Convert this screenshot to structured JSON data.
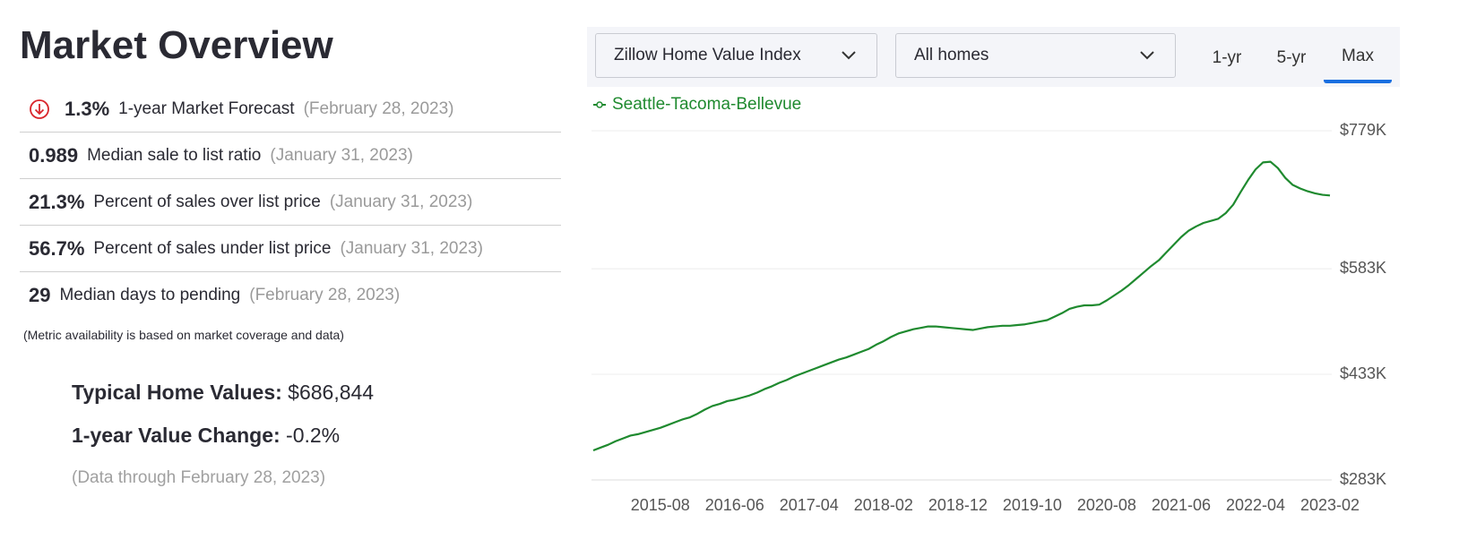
{
  "header": {
    "title": "Market Overview"
  },
  "metrics": [
    {
      "value": "1.3%",
      "label": "1-year Market Forecast",
      "date": "(February 28, 2023)"
    },
    {
      "value": "0.989",
      "label": "Median sale to list ratio",
      "date": "(January 31, 2023)"
    },
    {
      "value": "21.3%",
      "label": "Percent of sales over list price",
      "date": "(January 31, 2023)"
    },
    {
      "value": "56.7%",
      "label": "Percent of sales under list price",
      "date": "(January 31, 2023)"
    },
    {
      "value": "29",
      "label": "Median days to pending",
      "date": "(February 28, 2023)"
    }
  ],
  "note": "(Metric availability is based on market coverage and data)",
  "summary": {
    "typical_label": "Typical Home Values:",
    "typical_value": "$686,844",
    "change_label": "1-year Value Change:",
    "change_value": "-0.2%",
    "through": "(Data through February 28, 2023)"
  },
  "controls": {
    "index_dropdown": "Zillow Home Value Index",
    "homes_dropdown": "All homes",
    "tabs": [
      "1-yr",
      "5-yr",
      "Max"
    ],
    "active_tab": "Max"
  },
  "chart_data": {
    "type": "line",
    "x": [
      "2014-11",
      "2014-12",
      "2015-01",
      "2015-02",
      "2015-03",
      "2015-04",
      "2015-05",
      "2015-06",
      "2015-07",
      "2015-08",
      "2015-09",
      "2015-10",
      "2015-11",
      "2015-12",
      "2016-01",
      "2016-02",
      "2016-03",
      "2016-04",
      "2016-05",
      "2016-06",
      "2016-07",
      "2016-08",
      "2016-09",
      "2016-10",
      "2016-11",
      "2016-12",
      "2017-01",
      "2017-02",
      "2017-03",
      "2017-04",
      "2017-05",
      "2017-06",
      "2017-07",
      "2017-08",
      "2017-09",
      "2017-10",
      "2017-11",
      "2017-12",
      "2018-01",
      "2018-02",
      "2018-03",
      "2018-04",
      "2018-05",
      "2018-06",
      "2018-07",
      "2018-08",
      "2018-09",
      "2018-10",
      "2018-11",
      "2018-12",
      "2019-01",
      "2019-02",
      "2019-03",
      "2019-04",
      "2019-05",
      "2019-06",
      "2019-07",
      "2019-08",
      "2019-09",
      "2019-10",
      "2019-11",
      "2019-12",
      "2020-01",
      "2020-02",
      "2020-03",
      "2020-04",
      "2020-05",
      "2020-06",
      "2020-07",
      "2020-08",
      "2020-09",
      "2020-10",
      "2020-11",
      "2020-12",
      "2021-01",
      "2021-02",
      "2021-03",
      "2021-04",
      "2021-05",
      "2021-06",
      "2021-07",
      "2021-08",
      "2021-09",
      "2021-10",
      "2021-11",
      "2021-12",
      "2022-01",
      "2022-02",
      "2022-03",
      "2022-04",
      "2022-05",
      "2022-06",
      "2022-07",
      "2022-08",
      "2022-09",
      "2022-10",
      "2022-11",
      "2022-12",
      "2023-01",
      "2023-02"
    ],
    "series": [
      {
        "name": "Seattle-Tacoma-Bellevue",
        "color": "#1f8a2f",
        "values": [
          325,
          329,
          333,
          338,
          342,
          346,
          348,
          351,
          354,
          357,
          361,
          365,
          369,
          372,
          377,
          383,
          388,
          391,
          395,
          397,
          400,
          403,
          407,
          412,
          416,
          421,
          425,
          430,
          434,
          438,
          442,
          446,
          450,
          454,
          457,
          461,
          465,
          469,
          475,
          480,
          486,
          491,
          494,
          497,
          499,
          501,
          501,
          500,
          499,
          498,
          497,
          496,
          498,
          500,
          501,
          502,
          502,
          503,
          504,
          506,
          508,
          510,
          515,
          520,
          526,
          529,
          531,
          531,
          532,
          538,
          545,
          552,
          560,
          569,
          578,
          587,
          595,
          606,
          617,
          628,
          637,
          643,
          648,
          651,
          654,
          662,
          674,
          692,
          709,
          724,
          734,
          735,
          726,
          712,
          702,
          697,
          693,
          690,
          688,
          687
        ]
      }
    ],
    "ylim": [
      283,
      779
    ],
    "yticks": [
      {
        "value": 283,
        "label": "$283K"
      },
      {
        "value": 433,
        "label": "$433K"
      },
      {
        "value": 583,
        "label": "$583K"
      },
      {
        "value": 779,
        "label": "$779K"
      }
    ],
    "xticks": [
      "2015-08",
      "2016-06",
      "2017-04",
      "2018-02",
      "2018-12",
      "2019-10",
      "2020-08",
      "2021-06",
      "2022-04",
      "2023-02"
    ],
    "grid": true
  }
}
